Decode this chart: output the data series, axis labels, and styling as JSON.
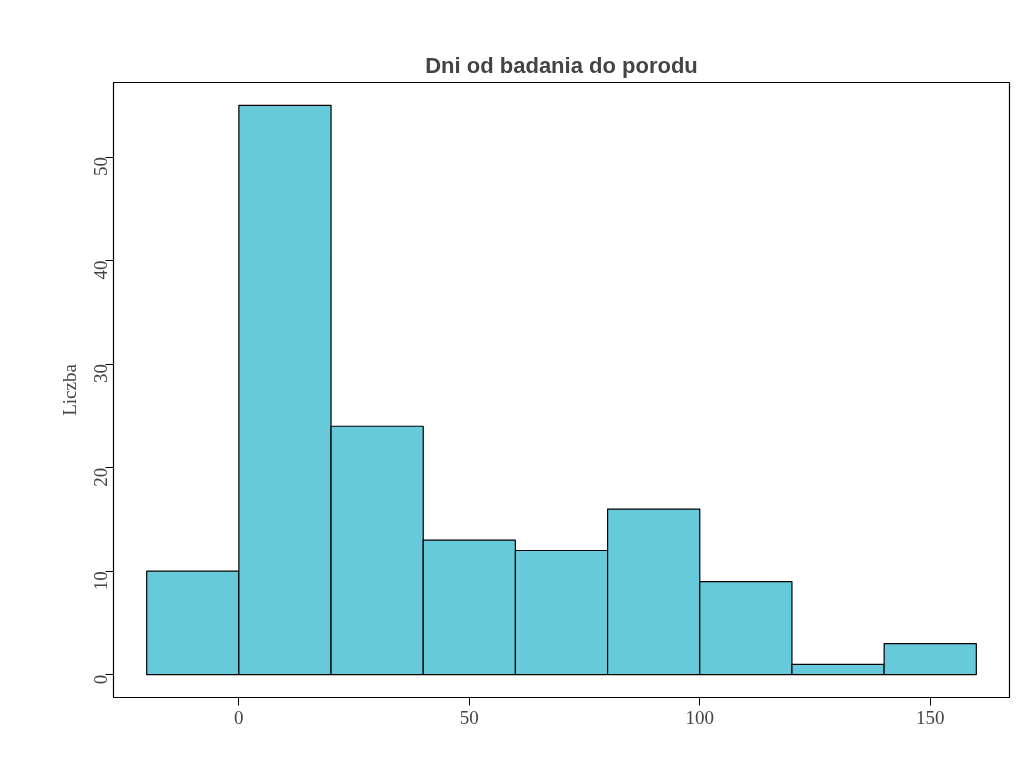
{
  "chart_data": {
    "type": "histogram",
    "title": "Dni od badania do porodu",
    "ylabel": "Liczba",
    "bins": [
      -20,
      0,
      20,
      40,
      60,
      80,
      100,
      120,
      140,
      160
    ],
    "values": [
      10,
      55,
      24,
      13,
      12,
      16,
      9,
      1,
      3
    ],
    "color": "#66cadb",
    "xlim": [
      -27.2,
      167.2
    ],
    "xticks": [
      0,
      50,
      100,
      150
    ],
    "ylim": [
      -2.2,
      57.2
    ],
    "yticks": [
      0,
      10,
      20,
      30,
      40,
      50
    ],
    "grid": false
  }
}
